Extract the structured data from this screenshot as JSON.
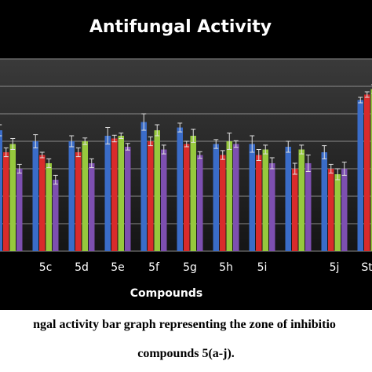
{
  "chart_data": {
    "type": "bar",
    "title": "Antifungal Activity",
    "xlabel": "Compounds",
    "ylabel": "",
    "ylim": [
      0,
      35
    ],
    "grid": true,
    "categories": [
      "",
      "5c",
      "5d",
      "5e",
      "5f",
      "5g",
      "5h",
      "5i",
      "",
      "5j",
      "Std"
    ],
    "series": [
      {
        "values": [
          22,
          20,
          20,
          21,
          23.5,
          22.5,
          19.5,
          19.5,
          19,
          18,
          27.5
        ],
        "errors": [
          1.0,
          1.2,
          1.0,
          1.5,
          1.5,
          0.8,
          0.8,
          1.5,
          1.0,
          1.2,
          0.5
        ]
      },
      {
        "values": [
          18,
          17.5,
          18,
          20.5,
          20,
          19.5,
          17.5,
          17.5,
          15,
          15,
          28.5
        ],
        "errors": [
          0.8,
          0.5,
          0.8,
          0.6,
          0.8,
          0.5,
          0.8,
          1.0,
          1.0,
          0.8,
          0.5
        ]
      },
      {
        "values": [
          19.5,
          16,
          20,
          21,
          22,
          21,
          20,
          18.5,
          18.5,
          14,
          29.5
        ],
        "errors": [
          1.0,
          0.8,
          0.6,
          0.5,
          1.0,
          1.2,
          1.5,
          0.8,
          0.8,
          1.0,
          0.8
        ]
      },
      {
        "values": [
          15,
          13,
          16,
          19,
          18.5,
          17.5,
          19.5,
          16,
          16,
          15,
          25
        ],
        "errors": [
          0.8,
          0.8,
          0.8,
          0.6,
          0.8,
          0.6,
          0.6,
          1.0,
          1.5,
          1.2,
          0.8
        ]
      }
    ],
    "colors": [
      "#3a6cc8",
      "#d92b2b",
      "#96c93d",
      "#7d4fb0"
    ]
  },
  "caption": {
    "line1": "ngal activity bar graph representing the zone of inhibitio",
    "line2": "compounds 5(a-j)."
  }
}
